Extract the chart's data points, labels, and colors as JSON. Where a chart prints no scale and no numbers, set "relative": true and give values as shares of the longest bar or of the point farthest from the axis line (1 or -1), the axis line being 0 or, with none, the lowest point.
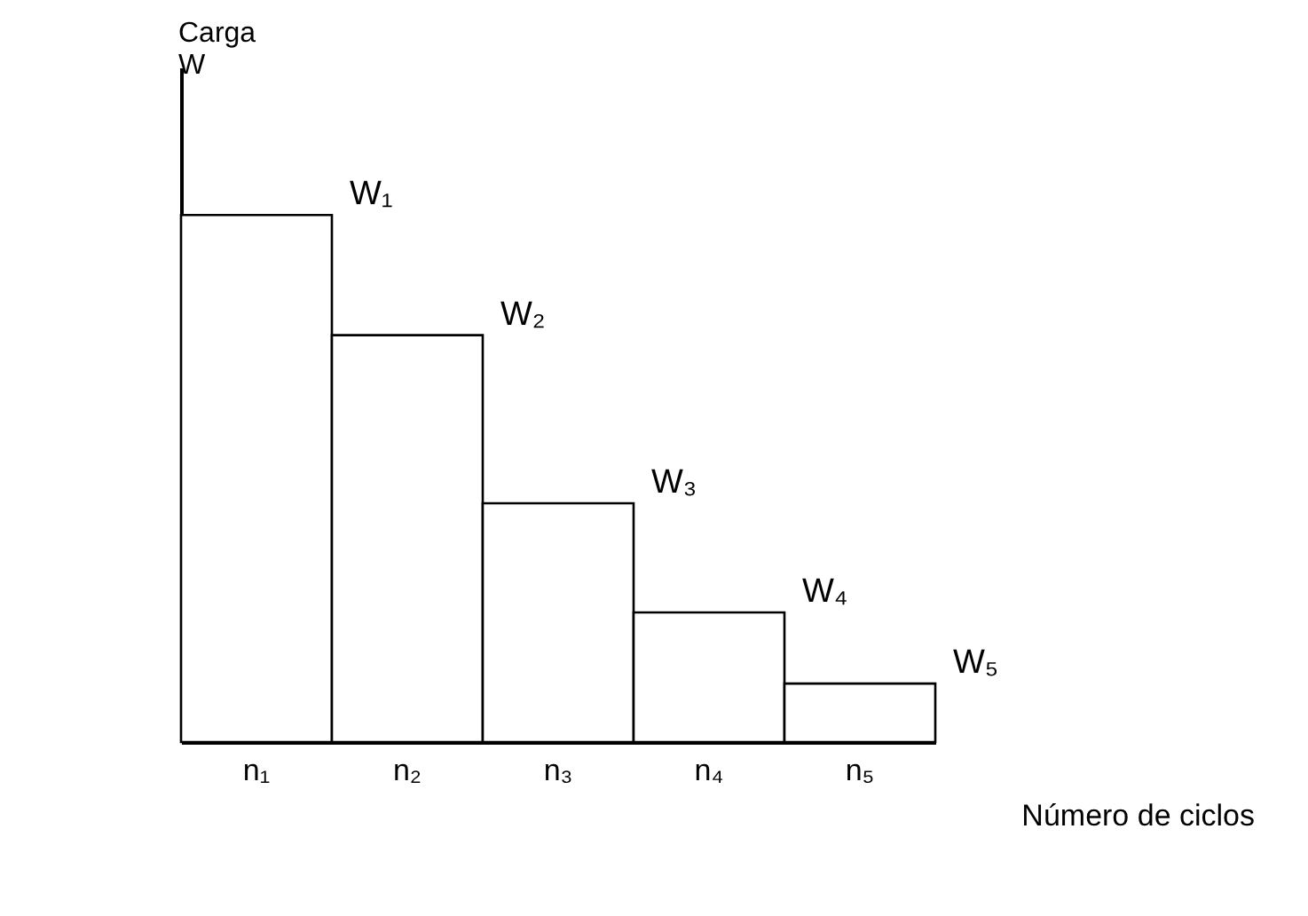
{
  "chart_data": {
    "type": "bar",
    "relative": true,
    "xlabel": "Número de ciclos",
    "ylabel": "Carga W",
    "categories": [
      "n₁",
      "n₂",
      "n₃",
      "n₄",
      "n₅"
    ],
    "values": [
      1,
      0.772,
      0.453,
      0.246,
      0.111
    ],
    "color": "#ffffff",
    "grid": false,
    "annotations": [
      {
        "text": "W₁",
        "x": "n₁",
        "y": 1
      },
      {
        "text": "W₂",
        "x": "n₂",
        "y": 0.772
      },
      {
        "text": "W₃",
        "x": "n₃",
        "y": 0.453
      },
      {
        "text": "W₄",
        "x": "n₄",
        "y": 0.246
      },
      {
        "text": "W₅",
        "x": "n₅",
        "y": 0.111
      }
    ]
  }
}
